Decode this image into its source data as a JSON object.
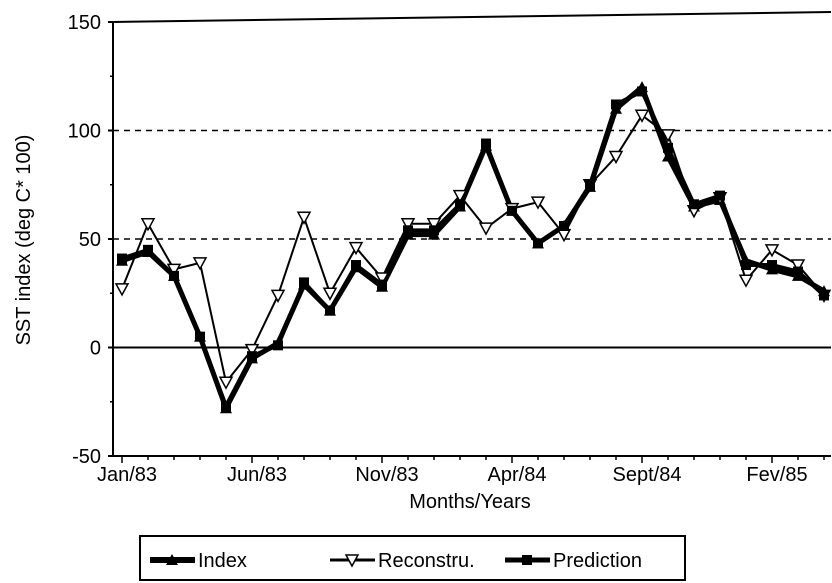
{
  "chart_data": {
    "type": "line",
    "x_label": "Months/Years",
    "y_label": "SST index (deg C* 100)",
    "categories": [
      "Jan/83",
      null,
      null,
      null,
      null,
      "Jun/83",
      null,
      null,
      null,
      null,
      "Nov/83",
      null,
      null,
      null,
      null,
      "Apr/84",
      null,
      null,
      null,
      null,
      "Sept/84",
      null,
      null,
      null,
      null,
      "Fev/85",
      null,
      null
    ],
    "series": [
      {
        "name": "Index",
        "color": "#000000",
        "marker": "triangle-up",
        "values": [
          40,
          44,
          33,
          5,
          -28,
          -5,
          2,
          29,
          17,
          37,
          28,
          52,
          52,
          65,
          93,
          63,
          48,
          56,
          74,
          110,
          120,
          88,
          65,
          68,
          40,
          36,
          33,
          26
        ]
      },
      {
        "name": "Reconstru.",
        "color": "#000000",
        "marker": "triangle-down",
        "values": [
          27,
          57,
          36,
          39,
          -16,
          -1,
          24,
          60,
          25,
          46,
          32,
          57,
          57,
          70,
          55,
          64,
          67,
          52,
          75,
          88,
          107,
          98,
          63,
          69,
          31,
          45,
          38,
          24
        ]
      },
      {
        "name": "Prediction",
        "color": "#000000",
        "marker": "square",
        "values": [
          41,
          45,
          33,
          5,
          -27,
          -4,
          1,
          30,
          17,
          38,
          29,
          54,
          54,
          66,
          94,
          63,
          48,
          56,
          75,
          112,
          118,
          92,
          66,
          70,
          38,
          38,
          35,
          24
        ]
      }
    ],
    "ylim": [
      -50,
      150
    ],
    "yticks": [
      -50,
      0,
      50,
      100,
      150
    ],
    "grid": true,
    "legend": "bottom"
  }
}
